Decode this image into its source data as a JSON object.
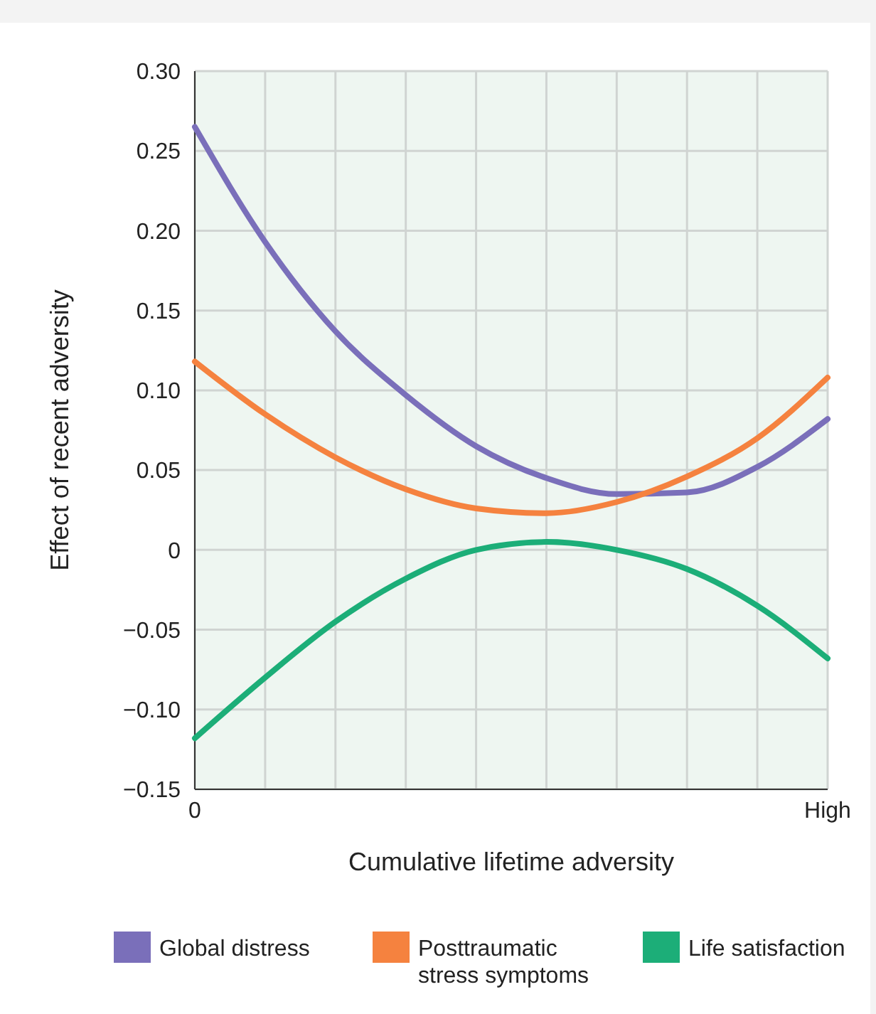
{
  "chart_data": {
    "type": "line",
    "xlabel": "Cumulative lifetime adversity",
    "ylabel": "Effect of recent adversity",
    "categories": [
      "0",
      null,
      null,
      null,
      null,
      null,
      null,
      null,
      null,
      "High"
    ],
    "series": [
      {
        "name": "Global distress",
        "color": "#7a6fba",
        "values": [
          0.265,
          0.193,
          0.137,
          0.097,
          0.065,
          0.045,
          0.035,
          0.036,
          0.052,
          0.082
        ]
      },
      {
        "name": "Posttraumatic stress symptoms",
        "color": "#f5823f",
        "values": [
          0.118,
          0.085,
          0.058,
          0.038,
          0.026,
          0.023,
          0.03,
          0.046,
          0.07,
          0.108
        ]
      },
      {
        "name": "Life satisfaction",
        "color": "#1cae78",
        "values": [
          -0.118,
          -0.08,
          -0.045,
          -0.018,
          0,
          0.005,
          0,
          -0.012,
          -0.035,
          -0.068
        ]
      }
    ],
    "ylim": [
      -0.15,
      0.3
    ],
    "yticks": [
      {
        "value": -0.15,
        "label": "−0.15"
      },
      {
        "value": -0.1,
        "label": "−0.10"
      },
      {
        "value": -0.05,
        "label": "−0.05"
      },
      {
        "value": 0,
        "label": "0"
      },
      {
        "value": 0.05,
        "label": "0.05"
      },
      {
        "value": 0.1,
        "label": "0.10"
      },
      {
        "value": 0.15,
        "label": "0.15"
      },
      {
        "value": 0.2,
        "label": "0.20"
      },
      {
        "value": 0.25,
        "label": "0.25"
      },
      {
        "value": 0.3,
        "label": "0.30"
      }
    ],
    "grid": true,
    "legend": "bottom",
    "marker": "none",
    "line_style": "solid"
  }
}
